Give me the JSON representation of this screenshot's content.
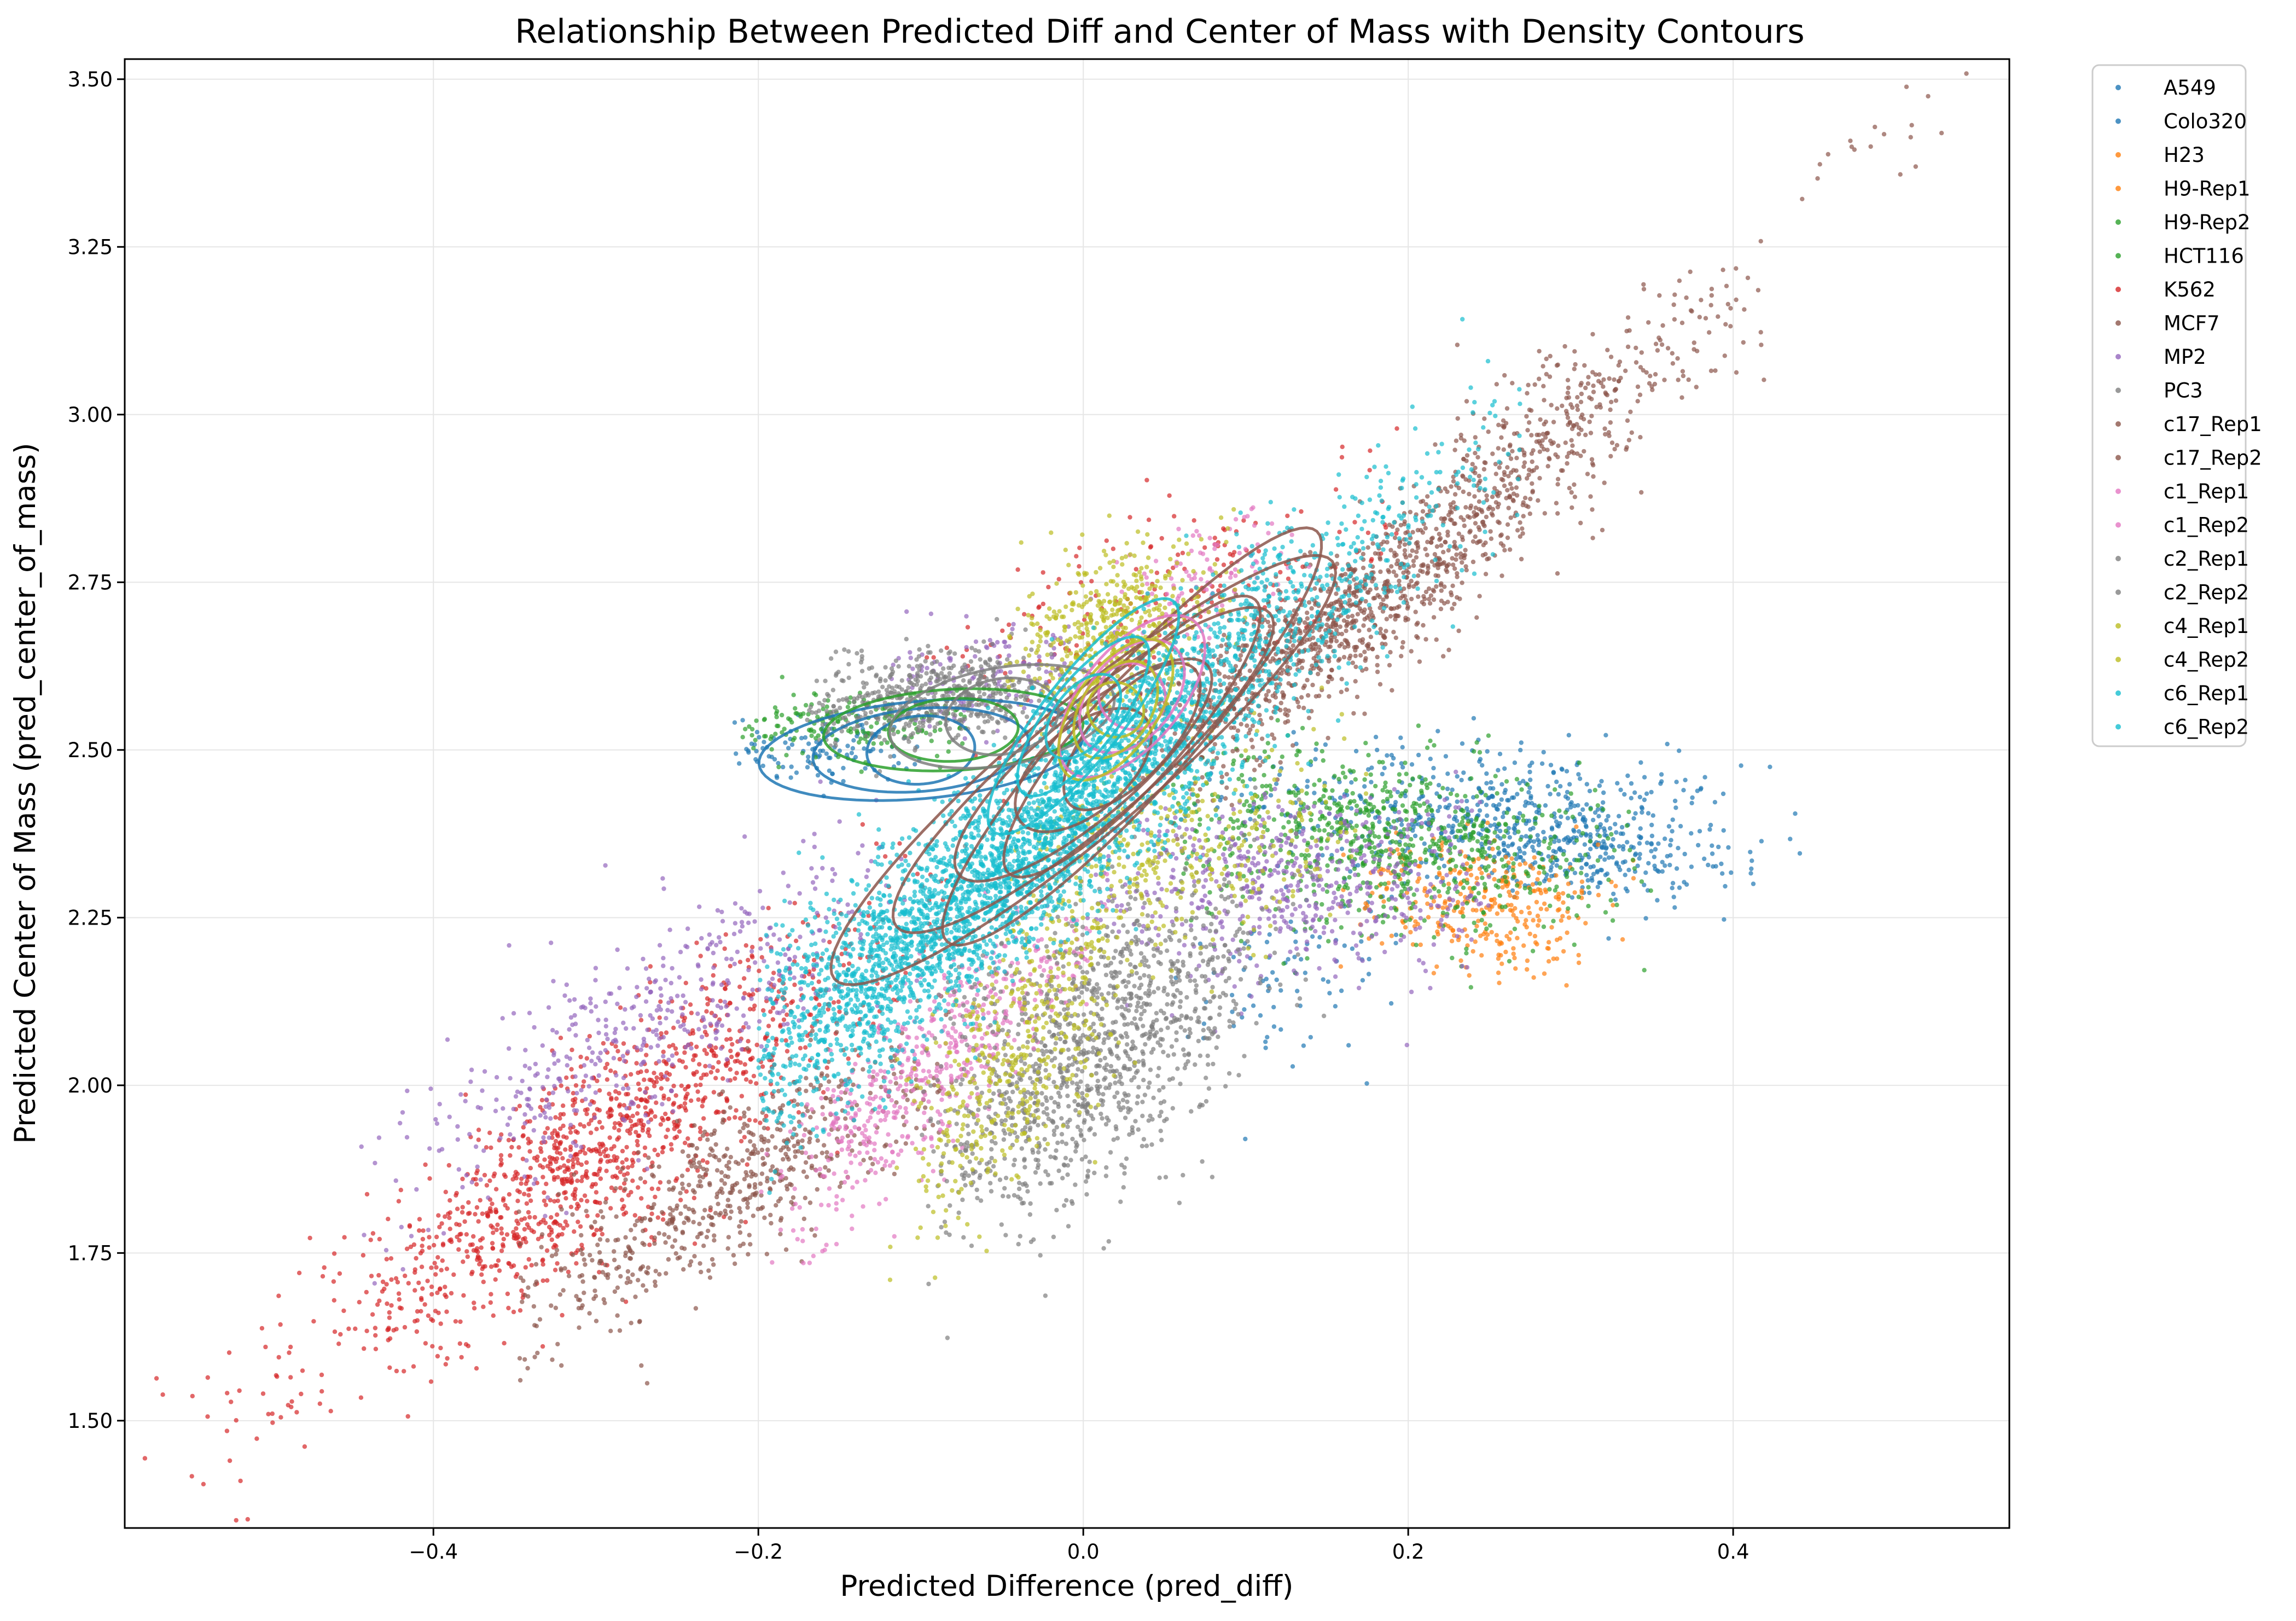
{
  "chart_data": {
    "type": "scatter",
    "title": "Relationship Between Predicted Diff and Center of Mass with Density Contours",
    "xlabel": "Predicted Difference (pred_diff)",
    "ylabel": "Predicted Center of Mass (pred_center_of_mass)",
    "xlim": [
      -0.59,
      0.57
    ],
    "ylim": [
      1.34,
      3.53
    ],
    "xticks": [
      -0.4,
      -0.2,
      0.0,
      0.2,
      0.4
    ],
    "xtick_labels": [
      "−0.4",
      "−0.2",
      "0.0",
      "0.2",
      "0.4"
    ],
    "yticks": [
      1.5,
      1.75,
      2.0,
      2.25,
      2.5,
      2.75,
      3.0,
      3.25,
      3.5
    ],
    "ytick_labels": [
      "1.50",
      "1.75",
      "2.00",
      "2.25",
      "2.50",
      "2.75",
      "3.00",
      "3.25",
      "3.50"
    ],
    "grid": true,
    "legend_position": "outside-upper-right",
    "series": [
      {
        "name": "A549",
        "color": "#1f77b4",
        "clusters": [
          {
            "cx": 0.25,
            "cy": 2.4,
            "sx": 0.08,
            "sy": 0.06,
            "rho": -0.3,
            "n": 500,
            "xmin": 0.05,
            "xmax": 0.45
          },
          {
            "cx": -0.16,
            "cy": 2.5,
            "sx": 0.03,
            "sy": 0.025,
            "rho": 0.0,
            "n": 120,
            "xmin": -0.22,
            "xmax": -0.1
          },
          {
            "cx": 0.12,
            "cy": 2.15,
            "sx": 0.04,
            "sy": 0.06,
            "rho": 0.3,
            "n": 90,
            "xmin": 0.05,
            "xmax": 0.2
          }
        ],
        "contour": {
          "cx": -0.1,
          "cy": 2.5,
          "rx": 0.1,
          "ry": 0.03,
          "angle_deg": -5,
          "levels": 3
        }
      },
      {
        "name": "Colo320",
        "color": "#1f77b4",
        "clusters": [
          {
            "cx": 0.3,
            "cy": 2.36,
            "sx": 0.05,
            "sy": 0.04,
            "rho": -0.4,
            "n": 250,
            "xmin": 0.2,
            "xmax": 0.45
          }
        ]
      },
      {
        "name": "H23",
        "color": "#ff7f0e",
        "clusters": [
          {
            "cx": 0.24,
            "cy": 2.26,
            "sx": 0.04,
            "sy": 0.05,
            "rho": -0.3,
            "n": 220,
            "xmin": 0.15,
            "xmax": 0.34
          }
        ]
      },
      {
        "name": "H9-Rep1",
        "color": "#ff7f0e",
        "clusters": [
          {
            "cx": 0.26,
            "cy": 2.3,
            "sx": 0.04,
            "sy": 0.04,
            "rho": -0.3,
            "n": 120,
            "xmin": 0.18,
            "xmax": 0.35
          }
        ]
      },
      {
        "name": "H9-Rep2",
        "color": "#2ca02c",
        "clusters": [
          {
            "cx": 0.2,
            "cy": 2.38,
            "sx": 0.07,
            "sy": 0.06,
            "rho": -0.4,
            "n": 500,
            "xmin": 0.05,
            "xmax": 0.35
          },
          {
            "cx": -0.14,
            "cy": 2.54,
            "sx": 0.04,
            "sy": 0.025,
            "rho": 0.0,
            "n": 200,
            "xmin": -0.21,
            "xmax": -0.07
          }
        ],
        "contour": {
          "cx": -0.08,
          "cy": 2.53,
          "rx": 0.08,
          "ry": 0.025,
          "angle_deg": -3,
          "levels": 2
        }
      },
      {
        "name": "HCT116",
        "color": "#2ca02c",
        "clusters": [
          {
            "cx": 0.17,
            "cy": 2.34,
            "sx": 0.06,
            "sy": 0.07,
            "rho": -0.2,
            "n": 300,
            "xmin": 0.05,
            "xmax": 0.33
          }
        ]
      },
      {
        "name": "K562",
        "color": "#d62728",
        "clusters": [
          {
            "cx": -0.3,
            "cy": 1.9,
            "sx": 0.09,
            "sy": 0.17,
            "rho": 0.9,
            "n": 1300,
            "xmin": -0.58,
            "xmax": -0.08
          },
          {
            "cx": 0.05,
            "cy": 2.72,
            "sx": 0.07,
            "sy": 0.1,
            "rho": 0.7,
            "n": 200,
            "xmin": -0.1,
            "xmax": 0.2
          }
        ]
      },
      {
        "name": "MCF7",
        "color": "#8c564b",
        "clusters": [
          {
            "cx": 0.18,
            "cy": 2.72,
            "sx": 0.07,
            "sy": 0.14,
            "rho": 0.92,
            "n": 900,
            "xmin": 0.05,
            "xmax": 0.35
          },
          {
            "cx": -0.22,
            "cy": 1.85,
            "sx": 0.07,
            "sy": 0.12,
            "rho": 0.85,
            "n": 700,
            "xmin": -0.35,
            "xmax": -0.08
          }
        ],
        "contour": {
          "cx": 0.0,
          "cy": 2.47,
          "rx": 0.2,
          "ry": 0.04,
          "angle_deg": -40,
          "levels": 4
        }
      },
      {
        "name": "MP2",
        "color": "#9467bd",
        "clusters": [
          {
            "cx": 0.13,
            "cy": 2.3,
            "sx": 0.07,
            "sy": 0.07,
            "rho": 0.0,
            "n": 600,
            "xmin": 0.0,
            "xmax": 0.25
          },
          {
            "cx": -0.26,
            "cy": 2.1,
            "sx": 0.08,
            "sy": 0.14,
            "rho": 0.85,
            "n": 500,
            "xmin": -0.45,
            "xmax": -0.1
          },
          {
            "cx": -0.06,
            "cy": 2.6,
            "sx": 0.04,
            "sy": 0.04,
            "rho": 0.3,
            "n": 150,
            "xmin": -0.12,
            "xmax": 0.02
          }
        ]
      },
      {
        "name": "PC3",
        "color": "#7f7f7f",
        "clusters": [
          {
            "cx": -0.09,
            "cy": 2.58,
            "sx": 0.04,
            "sy": 0.035,
            "rho": 0.2,
            "n": 600,
            "xmin": -0.17,
            "xmax": 0.0
          },
          {
            "cx": 0.02,
            "cy": 2.05,
            "sx": 0.05,
            "sy": 0.12,
            "rho": 0.6,
            "n": 700,
            "xmin": -0.08,
            "xmax": 0.1
          }
        ],
        "contour": {
          "cx": -0.05,
          "cy": 2.55,
          "rx": 0.07,
          "ry": 0.03,
          "angle_deg": -10,
          "levels": 2
        }
      },
      {
        "name": "c17_Rep1",
        "color": "#8c564b",
        "clusters": [
          {
            "cx": 0.3,
            "cy": 3.0,
            "sx": 0.06,
            "sy": 0.1,
            "rho": 0.85,
            "n": 300,
            "xmin": 0.2,
            "xmax": 0.42
          },
          {
            "cx": 0.49,
            "cy": 3.38,
            "sx": 0.04,
            "sy": 0.06,
            "rho": 0.7,
            "n": 20,
            "xmin": 0.43,
            "xmax": 0.55
          }
        ]
      },
      {
        "name": "c17_Rep2",
        "color": "#8c564b",
        "clusters": [
          {
            "cx": 0.12,
            "cy": 2.65,
            "sx": 0.06,
            "sy": 0.1,
            "rho": 0.9,
            "n": 350,
            "xmin": 0.03,
            "xmax": 0.25
          }
        ],
        "contour": {
          "cx": 0.03,
          "cy": 2.52,
          "rx": 0.17,
          "ry": 0.035,
          "angle_deg": -48,
          "levels": 3
        }
      },
      {
        "name": "c1_Rep1",
        "color": "#e377c2",
        "clusters": [
          {
            "cx": -0.1,
            "cy": 2.0,
            "sx": 0.05,
            "sy": 0.12,
            "rho": 0.85,
            "n": 350,
            "xmin": -0.2,
            "xmax": 0.0
          },
          {
            "cx": 0.07,
            "cy": 2.75,
            "sx": 0.03,
            "sy": 0.05,
            "rho": 0.5,
            "n": 120,
            "xmin": 0.02,
            "xmax": 0.15
          }
        ],
        "contour": {
          "cx": 0.03,
          "cy": 2.58,
          "rx": 0.06,
          "ry": 0.03,
          "angle_deg": -50,
          "levels": 3
        }
      },
      {
        "name": "c1_Rep2",
        "color": "#e377c2",
        "clusters": [
          {
            "cx": -0.08,
            "cy": 2.08,
            "sx": 0.05,
            "sy": 0.1,
            "rho": 0.85,
            "n": 250,
            "xmin": -0.18,
            "xmax": 0.02
          }
        ]
      },
      {
        "name": "c2_Rep1",
        "color": "#7f7f7f",
        "clusters": [
          {
            "cx": 0.02,
            "cy": 2.15,
            "sx": 0.06,
            "sy": 0.1,
            "rho": 0.4,
            "n": 400,
            "xmin": -0.1,
            "xmax": 0.15
          }
        ]
      },
      {
        "name": "c2_Rep2",
        "color": "#7f7f7f",
        "clusters": [
          {
            "cx": -0.04,
            "cy": 1.95,
            "sx": 0.04,
            "sy": 0.09,
            "rho": 0.6,
            "n": 250,
            "xmin": -0.1,
            "xmax": 0.05
          }
        ]
      },
      {
        "name": "c4_Rep1",
        "color": "#bcbd22",
        "clusters": [
          {
            "cx": 0.02,
            "cy": 2.68,
            "sx": 0.03,
            "sy": 0.06,
            "rho": 0.3,
            "n": 500,
            "xmin": -0.05,
            "xmax": 0.1
          },
          {
            "cx": -0.04,
            "cy": 2.05,
            "sx": 0.04,
            "sy": 0.14,
            "rho": 0.75,
            "n": 500,
            "xmin": -0.12,
            "xmax": 0.06
          }
        ],
        "contour": {
          "cx": 0.02,
          "cy": 2.56,
          "rx": 0.05,
          "ry": 0.025,
          "angle_deg": -55,
          "levels": 3
        }
      },
      {
        "name": "c4_Rep2",
        "color": "#bcbd22",
        "clusters": [
          {
            "cx": 0.05,
            "cy": 2.35,
            "sx": 0.06,
            "sy": 0.08,
            "rho": 0.3,
            "n": 400,
            "xmin": -0.05,
            "xmax": 0.18
          }
        ]
      },
      {
        "name": "c6_Rep1",
        "color": "#17becf",
        "clusters": [
          {
            "cx": -0.02,
            "cy": 2.4,
            "sx": 0.12,
            "sy": 0.25,
            "rho": 0.95,
            "n": 3000,
            "xmin": -0.2,
            "xmax": 0.27
          }
        ],
        "contour": {
          "cx": 0.0,
          "cy": 2.55,
          "rx": 0.09,
          "ry": 0.025,
          "angle_deg": -52,
          "levels": 3
        }
      },
      {
        "name": "c6_Rep2",
        "color": "#17becf",
        "clusters": [
          {
            "cx": -0.05,
            "cy": 2.3,
            "sx": 0.08,
            "sy": 0.18,
            "rho": 0.93,
            "n": 1200,
            "xmin": -0.2,
            "xmax": 0.1
          }
        ]
      }
    ]
  }
}
